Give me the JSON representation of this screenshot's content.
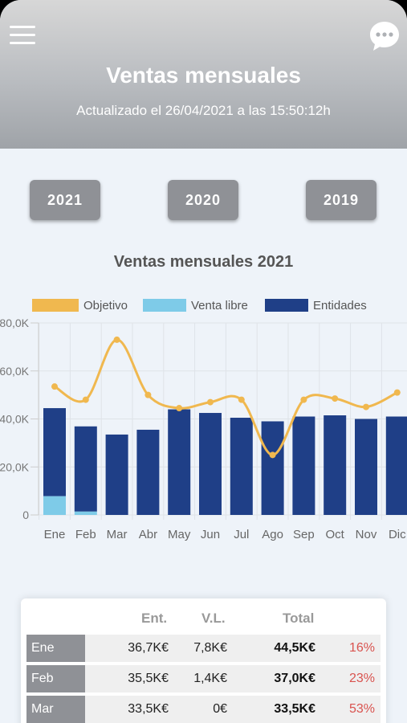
{
  "header": {
    "title": "Ventas mensuales",
    "subtitle": "Actualizado el 26/04/2021 a las 15:50:12h",
    "menu_icon": "hamburger-menu-icon",
    "chat_icon": "chat-bubble-icon"
  },
  "year_buttons": [
    "2021",
    "2020",
    "2019"
  ],
  "chart_data": {
    "type": "bar",
    "title": "Ventas mensuales 2021",
    "categories": [
      "Ene",
      "Feb",
      "Mar",
      "Abr",
      "May",
      "Jun",
      "Jul",
      "Ago",
      "Sep",
      "Oct",
      "Nov",
      "Dic"
    ],
    "series": [
      {
        "name": "Objetivo",
        "kind": "line",
        "color": "#f0b84f",
        "values": [
          53.5,
          48,
          73,
          50,
          44.5,
          47,
          48,
          25,
          48,
          48.5,
          45,
          51
        ]
      },
      {
        "name": "Venta libre",
        "kind": "bar",
        "color": "#7ecbe8",
        "values": [
          7.8,
          1.4,
          0,
          0,
          0,
          0,
          0,
          0,
          0,
          0,
          0,
          0
        ]
      },
      {
        "name": "Entidades",
        "kind": "bar",
        "color": "#1f3f87",
        "values": [
          36.7,
          35.5,
          33.5,
          35.5,
          44,
          42.5,
          40.5,
          39,
          41,
          41.5,
          40,
          41
        ]
      }
    ],
    "stacked": true,
    "ylim": [
      0,
      80
    ],
    "yticks": [
      "0",
      "20,0K",
      "40,0K",
      "60,0K",
      "80,0K"
    ],
    "grid": true,
    "legend": "top"
  },
  "table": {
    "headers": {
      "ent": "Ent.",
      "vl": "V.L.",
      "total": "Total"
    },
    "rows": [
      {
        "month": "Ene",
        "ent": "36,7K€",
        "vl": "7,8K€",
        "total": "44,5K€",
        "pct": "16%"
      },
      {
        "month": "Feb",
        "ent": "35,5K€",
        "vl": "1,4K€",
        "total": "37,0K€",
        "pct": "23%"
      },
      {
        "month": "Mar",
        "ent": "33,5K€",
        "vl": "0€",
        "total": "33,5K€",
        "pct": "53%"
      }
    ]
  },
  "colors": {
    "header": "#b9bcc0",
    "button": "#8f9196",
    "accent_red": "#d9534f"
  }
}
